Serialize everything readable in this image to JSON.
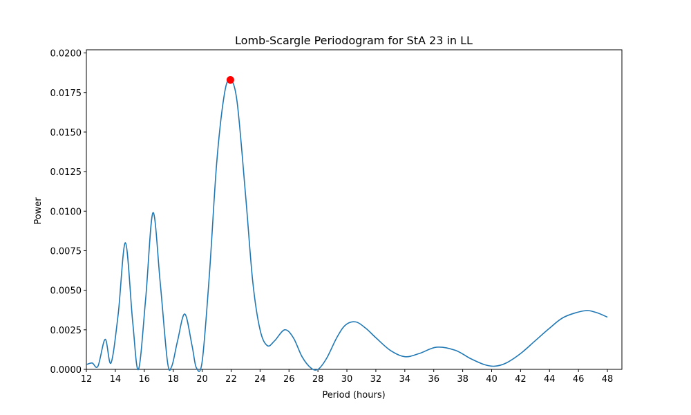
{
  "chart_data": {
    "type": "line",
    "title": "Lomb-Scargle Periodogram for StA 23 in LL",
    "xlabel": "Period (hours)",
    "ylabel": "Power",
    "xlim": [
      12,
      49
    ],
    "ylim": [
      0,
      0.0202
    ],
    "x_ticks": [
      12,
      14,
      16,
      18,
      20,
      22,
      24,
      26,
      28,
      30,
      32,
      34,
      36,
      38,
      40,
      42,
      44,
      46,
      48
    ],
    "y_ticks": [
      0,
      0.0025,
      0.005,
      0.0075,
      0.01,
      0.0125,
      0.015,
      0.0175,
      0.02
    ],
    "y_tick_labels": [
      "0.0000",
      "0.0025",
      "0.0050",
      "0.0075",
      "0.0100",
      "0.0125",
      "0.0150",
      "0.0175",
      "0.0200"
    ],
    "grid": false,
    "line_color": "#1f77b4",
    "marker_color": "#ff0000",
    "series": [
      {
        "x": [
          12,
          12.4,
          12.8,
          13.3,
          13.7,
          14.2,
          14.7,
          15.2,
          15.6,
          16.1,
          16.6,
          17.1,
          17.6,
          17.9,
          18.3,
          18.8,
          19.3,
          19.6,
          20.0,
          20.5,
          21.0,
          21.5,
          21.9,
          22.4,
          23.0,
          23.5,
          24.0,
          24.5,
          25.0,
          25.7,
          26.3,
          26.9,
          27.5,
          28.0,
          28.6,
          29.3,
          29.9,
          30.6,
          31.3,
          32.0,
          33.0,
          34.0,
          35.0,
          36.2,
          37.5,
          38.5,
          39.5,
          40.2,
          41.0,
          42.0,
          43.0,
          44.0,
          45.0,
          46.4,
          47.2,
          48.0
        ],
        "y": [
          0.0003,
          0.0004,
          0.0002,
          0.0019,
          0.0004,
          0.0035,
          0.008,
          0.003,
          0.0,
          0.0045,
          0.0099,
          0.0055,
          0.0005,
          0.0002,
          0.0018,
          0.0035,
          0.0015,
          0.0001,
          0.0005,
          0.006,
          0.013,
          0.0172,
          0.0183,
          0.017,
          0.011,
          0.0055,
          0.0025,
          0.0015,
          0.0018,
          0.0025,
          0.002,
          0.0008,
          0.0001,
          0.0,
          0.0007,
          0.002,
          0.0028,
          0.003,
          0.0026,
          0.002,
          0.0012,
          0.0008,
          0.001,
          0.0014,
          0.0012,
          0.0007,
          0.0003,
          0.0002,
          0.0004,
          0.001,
          0.0018,
          0.0026,
          0.0033,
          0.0037,
          0.0036,
          0.0033
        ]
      }
    ],
    "peak": {
      "x": 21.95,
      "y": 0.0183
    }
  }
}
